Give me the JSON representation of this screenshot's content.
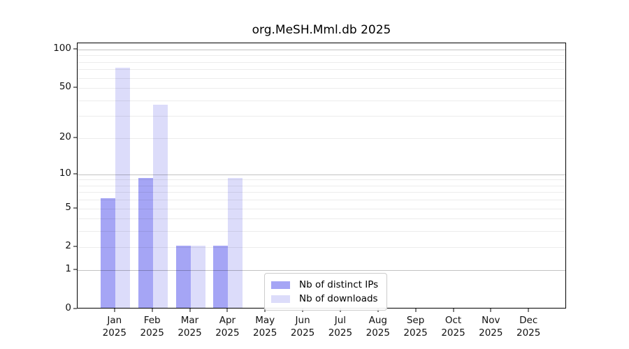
{
  "chart_data": {
    "type": "bar",
    "title": "org.MeSH.Mml.db 2025",
    "categories": [
      "Jan",
      "Feb",
      "Mar",
      "Apr",
      "May",
      "Jun",
      "Jul",
      "Aug",
      "Sep",
      "Oct",
      "Nov",
      "Dec"
    ],
    "category_year": "2025",
    "series": [
      {
        "name": "Nb of distinct IPs",
        "color": "#a5a5f5",
        "values": [
          6,
          9,
          2,
          2,
          0,
          0,
          0,
          0,
          0,
          0,
          0,
          0
        ]
      },
      {
        "name": "Nb of downloads",
        "color": "#dcdcfa",
        "values": [
          70,
          36,
          2,
          9,
          0,
          0,
          0,
          0,
          0,
          0,
          0,
          0
        ]
      }
    ],
    "yscale": "log(1+x)",
    "ylim": [
      0,
      112
    ],
    "yticks": [
      0,
      1,
      2,
      5,
      10,
      20,
      50,
      100
    ],
    "major_gridlines": [
      1,
      10,
      100
    ],
    "minor_gridlines": [
      2,
      3,
      4,
      5,
      6,
      7,
      8,
      9,
      20,
      30,
      40,
      50,
      60,
      70,
      80,
      90
    ],
    "grid": "horizontal",
    "legend_position": "inside-bottom-center",
    "background": "#ffffff",
    "axis_color": "#000000"
  }
}
